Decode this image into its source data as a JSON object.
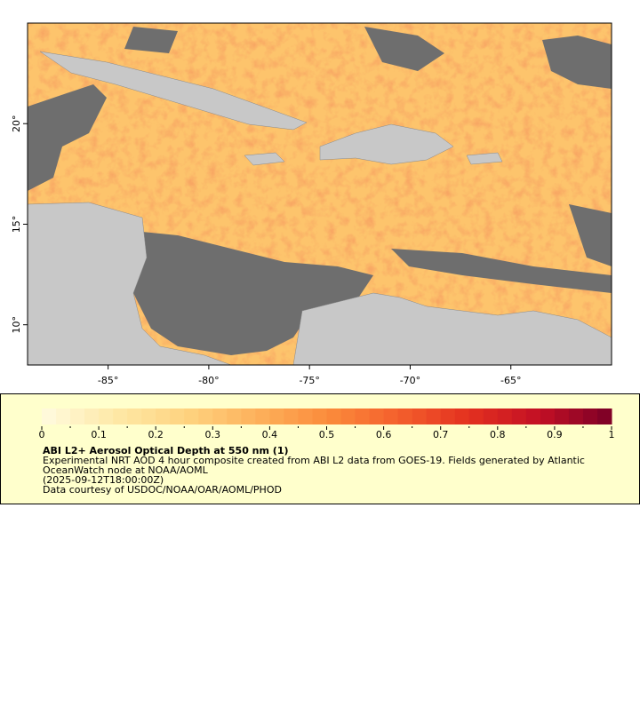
{
  "map": {
    "xlim": [
      -89,
      -60
    ],
    "ylim": [
      8,
      25
    ],
    "xticks": [
      {
        "value": -85,
        "label": "-85°"
      },
      {
        "value": -80,
        "label": "-80°"
      },
      {
        "value": -75,
        "label": "-75°"
      },
      {
        "value": -70,
        "label": "-70°"
      },
      {
        "value": -65,
        "label": "-65°"
      }
    ],
    "yticks": [
      {
        "value": 10,
        "label": "10°"
      },
      {
        "value": 15,
        "label": "15°"
      },
      {
        "value": 20,
        "label": "20°"
      }
    ]
  },
  "legend": {
    "range": [
      0,
      1
    ],
    "ticks": [
      0,
      0.1,
      0.2,
      0.3,
      0.4,
      0.5,
      0.6,
      0.7,
      0.8,
      0.9,
      1
    ],
    "colors": [
      "#fffbe0",
      "#fee9a8",
      "#fed481",
      "#fdb25c",
      "#fb8c3c",
      "#f4602c",
      "#e3301f",
      "#c20f25",
      "#7a0026"
    ],
    "title": "ABI L2+ Aerosol Optical Depth at 550 nm (1)",
    "description": [
      "Experimental NRT AOD 4 hour composite created from ABI L2 data from GOES-19. Fields generated by Atlantic",
      "OceanWatch node at NOAA/AOML",
      "(2025-09-12T18:00:00Z)",
      "Data courtesy of USDOC/NOAA/OAR/AOML/PHOD"
    ]
  }
}
